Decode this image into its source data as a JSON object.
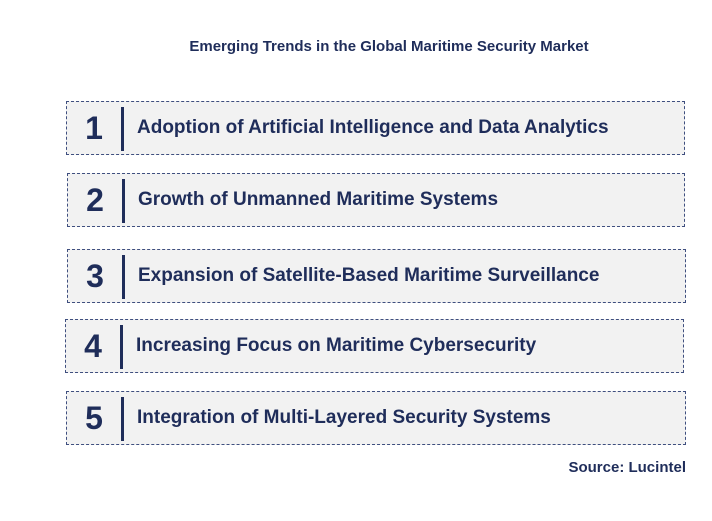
{
  "title": "Emerging Trends in the Global Maritime Security Market",
  "trends": [
    {
      "number": "1",
      "label": "Adoption of Artificial Intelligence and Data Analytics"
    },
    {
      "number": "2",
      "label": "Growth of Unmanned Maritime Systems"
    },
    {
      "number": "3",
      "label": "Expansion of Satellite-Based Maritime Surveillance"
    },
    {
      "number": "4",
      "label": "Increasing Focus on Maritime Cybersecurity"
    },
    {
      "number": "5",
      "label": "Integration of Multi-Layered Security Systems"
    }
  ],
  "source": "Source: Lucintel",
  "colors": {
    "text": "#1f2d5a",
    "box_background": "#f2f2f2",
    "box_border": "#3f4f7f"
  }
}
